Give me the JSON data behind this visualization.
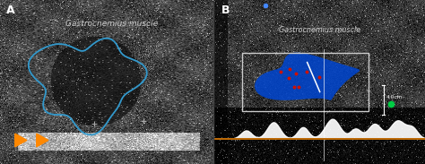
{
  "figsize": [
    4.74,
    1.83
  ],
  "dpi": 100,
  "bg_color": "#000000",
  "panel_A": {
    "label": "A",
    "label_color": "#ffffff",
    "title": "Gastrocnemius muscle",
    "title_color": "#c8c8c8",
    "bg_noise_seed": 42,
    "blue_contour_color": "#3399cc",
    "arrow_color": "#ff8800",
    "crosshair_color": "#aaaaaa"
  },
  "panel_B": {
    "label": "B",
    "label_color": "#ffffff",
    "title": "Gastrocnemius muscle",
    "title_color": "#d0d0d0",
    "bg_noise_seed": 99,
    "blue_fill_color": "#0044cc",
    "box_color": "#cccccc",
    "orange_line_color": "#bb6600",
    "scale_text": "4.0cm",
    "green_dot_color": "#00cc44"
  }
}
